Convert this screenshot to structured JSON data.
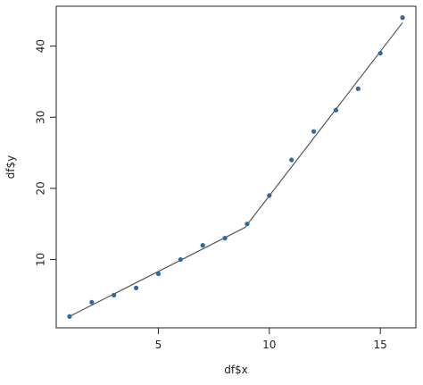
{
  "chart_data": {
    "type": "scatter",
    "title": "",
    "xlabel": "df$x",
    "ylabel": "df$y",
    "xlim": [
      0.4,
      16.6
    ],
    "ylim": [
      0.4,
      45.6
    ],
    "x_ticks": [
      5,
      10,
      15
    ],
    "y_ticks": [
      10,
      20,
      30,
      40
    ],
    "grid": false,
    "legend": "none",
    "colors": {
      "points": "#2e6aa0",
      "line": "#555555",
      "axis": "#222222"
    },
    "series": [
      {
        "type": "scatter",
        "x": [
          1,
          2,
          3,
          4,
          5,
          6,
          7,
          8,
          9,
          10,
          11,
          12,
          13,
          14,
          15,
          16
        ],
        "y": [
          2,
          4,
          5,
          6,
          8,
          10,
          12,
          13,
          15,
          19,
          24,
          28,
          31,
          34,
          39,
          44
        ]
      },
      {
        "type": "line",
        "x": [
          1,
          8.9,
          16
        ],
        "y": [
          2.0,
          14.5,
          43.3
        ]
      }
    ]
  }
}
